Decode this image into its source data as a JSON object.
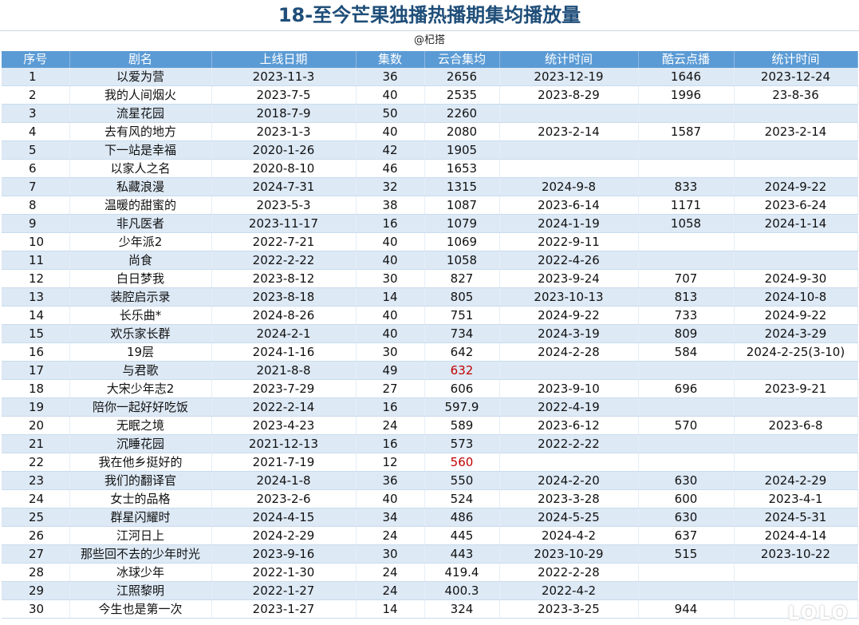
{
  "title": "18-至今芒果独播热播期集均播放量",
  "credit": "@杞搭",
  "columns": [
    "序号",
    "剧名",
    "上线日期",
    "集数",
    "云合集均",
    "统计时间",
    "酷云点播",
    "统计时间"
  ],
  "rows": [
    [
      "1",
      "以爱为营",
      "2023-11-3",
      "36",
      "2656",
      "2023-12-19",
      "1646",
      "2023-12-24"
    ],
    [
      "2",
      "我的人间烟火",
      "2023-7-5",
      "40",
      "2535",
      "2023-8-29",
      "1996",
      "23-8-36"
    ],
    [
      "3",
      "流星花园",
      "2018-7-9",
      "50",
      "2260",
      "",
      "",
      ""
    ],
    [
      "4",
      "去有风的地方",
      "2023-1-3",
      "40",
      "2080",
      "2023-2-14",
      "1587",
      "2023-2-14"
    ],
    [
      "5",
      "下一站是幸福",
      "2020-1-26",
      "42",
      "1905",
      "",
      "",
      ""
    ],
    [
      "6",
      "以家人之名",
      "2020-8-10",
      "46",
      "1653",
      "",
      "",
      ""
    ],
    [
      "7",
      "私藏浪漫",
      "2024-7-31",
      "32",
      "1315",
      "2024-9-8",
      "833",
      "2024-9-22"
    ],
    [
      "8",
      "温暖的甜蜜的",
      "2023-5-3",
      "38",
      "1087",
      "2023-6-14",
      "1171",
      "2023-6-24"
    ],
    [
      "9",
      "非凡医者",
      "2023-11-17",
      "16",
      "1079",
      "2024-1-19",
      "1058",
      "2024-1-14"
    ],
    [
      "10",
      "少年派2",
      "2022-7-21",
      "40",
      "1069",
      "2022-9-11",
      "",
      ""
    ],
    [
      "11",
      "尚食",
      "2022-2-22",
      "40",
      "1058",
      "2022-4-26",
      "",
      ""
    ],
    [
      "12",
      "白日梦我",
      "2023-8-12",
      "30",
      "827",
      "2023-9-24",
      "707",
      "2024-9-30"
    ],
    [
      "13",
      "装腔启示录",
      "2023-8-18",
      "14",
      "805",
      "2023-10-13",
      "813",
      "2024-10-8"
    ],
    [
      "14",
      "长乐曲*",
      "2024-8-26",
      "40",
      "751",
      "2024-9-22",
      "733",
      "2024-9-22"
    ],
    [
      "15",
      "欢乐家长群",
      "2024-2-1",
      "40",
      "734",
      "2024-3-19",
      "809",
      "2024-3-29"
    ],
    [
      "16",
      "19层",
      "2024-1-16",
      "30",
      "642",
      "2024-2-28",
      "584",
      "2024-2-25(3-10)"
    ],
    [
      "17",
      "与君歌",
      "2021-8-8",
      "49",
      "632",
      "",
      "",
      ""
    ],
    [
      "18",
      "大宋少年志2",
      "2023-7-29",
      "27",
      "606",
      "2023-9-10",
      "696",
      "2023-9-21"
    ],
    [
      "19",
      "陪你一起好好吃饭",
      "2022-2-14",
      "16",
      "597.9",
      "2022-4-19",
      "",
      ""
    ],
    [
      "20",
      "无眠之境",
      "2023-4-23",
      "24",
      "589",
      "2023-6-12",
      "570",
      "2023-6-8"
    ],
    [
      "21",
      "沉睡花园",
      "2021-12-13",
      "16",
      "573",
      "2022-2-22",
      "",
      ""
    ],
    [
      "22",
      "我在他乡挺好的",
      "2021-7-19",
      "12",
      "560",
      "",
      "",
      ""
    ],
    [
      "23",
      "我们的翻译官",
      "2024-1-8",
      "36",
      "550",
      "2024-2-20",
      "630",
      "2024-2-29"
    ],
    [
      "24",
      "女士的品格",
      "2023-2-6",
      "40",
      "524",
      "2023-3-28",
      "600",
      "2023-4-1"
    ],
    [
      "25",
      "群星闪耀时",
      "2024-4-15",
      "34",
      "486",
      "2024-5-25",
      "630",
      "2024-5-31"
    ],
    [
      "26",
      "江河日上",
      "2024-2-29",
      "24",
      "445",
      "2024-4-2",
      "637",
      "2024-4-14"
    ],
    [
      "27",
      "那些回不去的少年时光",
      "2023-9-16",
      "30",
      "443",
      "2023-10-29",
      "515",
      "2023-10-22"
    ],
    [
      "28",
      "冰球少年",
      "2022-1-30",
      "24",
      "419.4",
      "2022-2-28",
      "",
      ""
    ],
    [
      "29",
      "江照黎明",
      "2022-1-27",
      "24",
      "400.3",
      "2022-4-2",
      "",
      ""
    ],
    [
      "30",
      "今生也是第一次",
      "2023-1-27",
      "14",
      "324",
      "2023-3-25",
      "944",
      ""
    ]
  ],
  "highlight_color": "#c00000",
  "red_rows": [
    16,
    21
  ],
  "watermark": "LOLO"
}
